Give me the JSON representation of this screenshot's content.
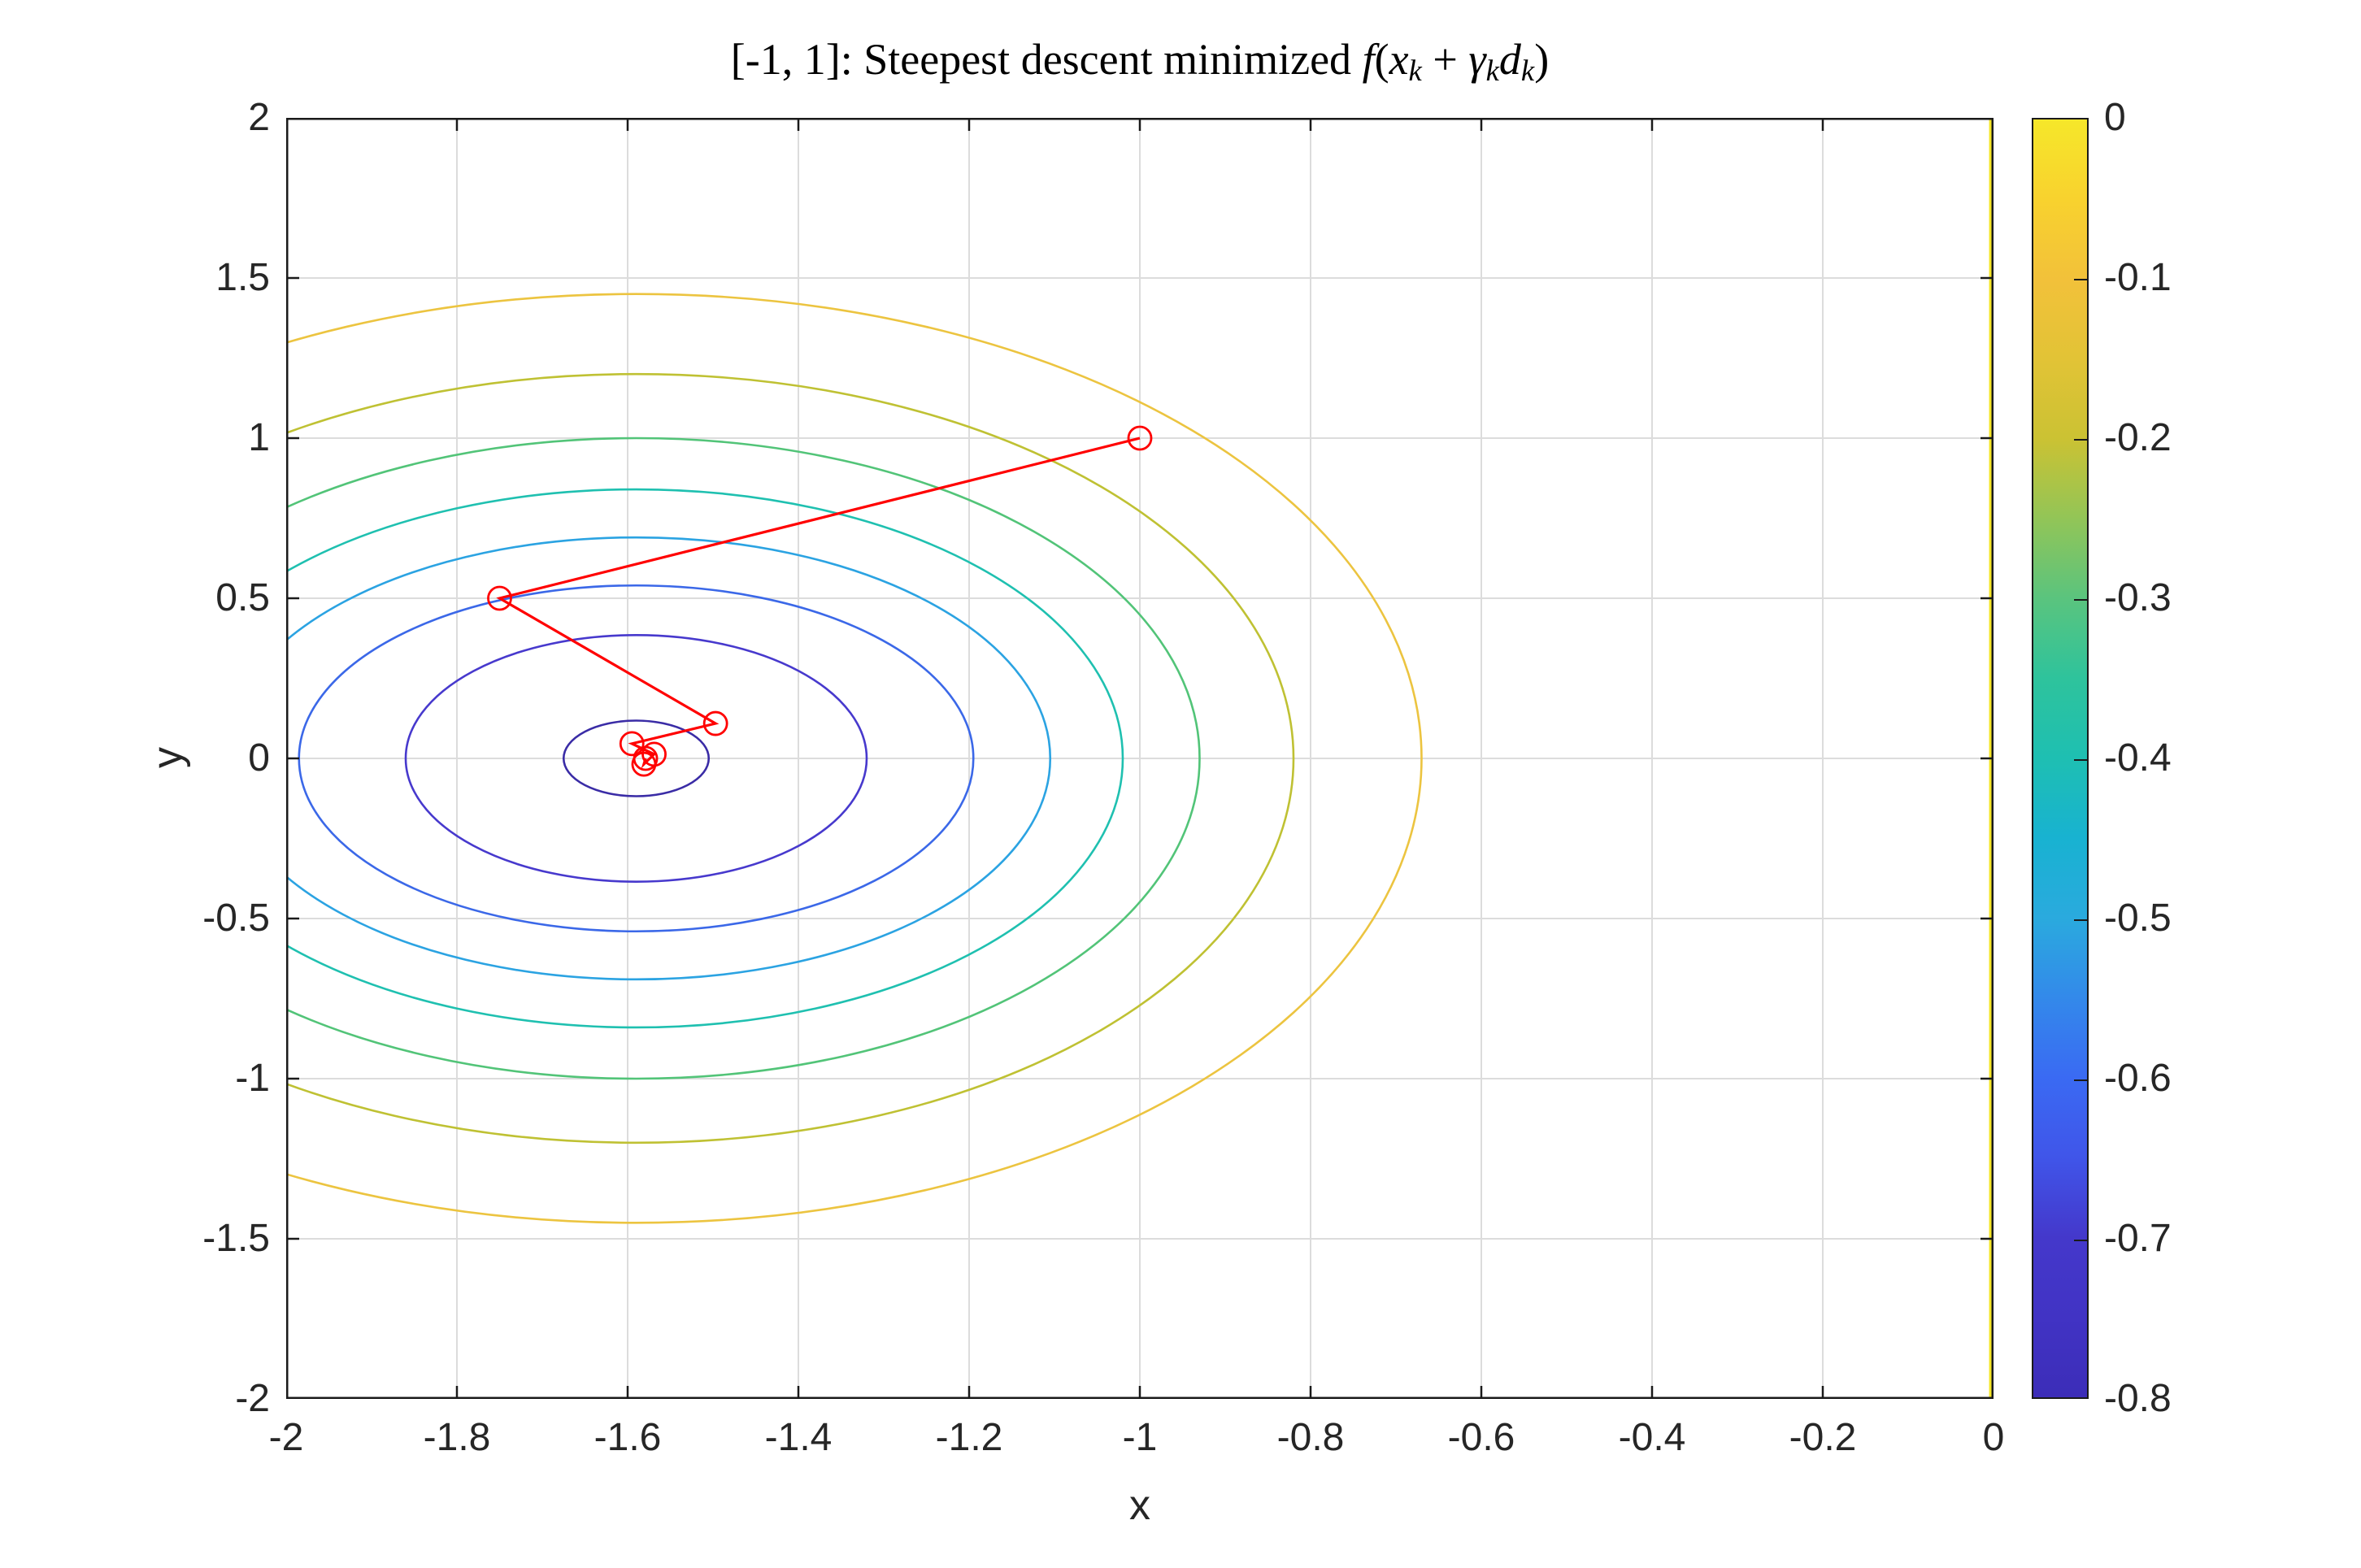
{
  "figure": {
    "background": "#ffffff",
    "title": {
      "prefix": "[-1, 1]: Steepest descent minimized ",
      "math": {
        "f": "f",
        "lparen": "(",
        "x": "x",
        "k1": "k",
        "plus": " + ",
        "gamma": "γ",
        "k2": "k",
        "d": "d",
        "k3": "k",
        "rparen": ")"
      }
    },
    "xlabel": "x",
    "ylabel": "y"
  },
  "style_colors": {
    "axis": "#1a1a1a",
    "grid": "#dcdcdc",
    "tick_text": "#262626",
    "path_red": "#ff0000"
  },
  "chart_data": {
    "type": "contour",
    "title": "[-1, 1]: Steepest descent minimized f(x_k + γ_k d_k)",
    "xlabel": "x",
    "ylabel": "y",
    "xlim": [
      -2,
      0
    ],
    "ylim": [
      -2,
      2
    ],
    "grid": true,
    "x_ticks": [
      -2,
      -1.8,
      -1.6,
      -1.4,
      -1.2,
      -1,
      -0.8,
      -0.6,
      -0.4,
      -0.2,
      0
    ],
    "x_tick_labels": [
      "-2",
      "-1.8",
      "-1.6",
      "-1.4",
      "-1.2",
      "-1",
      "-0.8",
      "-0.6",
      "-0.4",
      "-0.2",
      "0"
    ],
    "y_ticks": [
      -2,
      -1.5,
      -1,
      -0.5,
      0,
      0.5,
      1,
      1.5,
      2
    ],
    "y_tick_labels": [
      "-2",
      "-1.5",
      "-1",
      "-0.5",
      "0",
      "0.5",
      "1",
      "1.5",
      "2"
    ],
    "colormap": "parula",
    "colorbar": {
      "range": [
        -0.8,
        0
      ],
      "tick_values": [
        0,
        -0.1,
        -0.2,
        -0.3,
        -0.4,
        -0.5,
        -0.6,
        -0.7,
        -0.8
      ],
      "tick_labels": [
        "0",
        "-0.1",
        "-0.2",
        "-0.3",
        "-0.4",
        "-0.5",
        "-0.6",
        "-0.7",
        "-0.8"
      ],
      "gradient_stops": [
        {
          "v": 0,
          "c": "#f6e72a"
        },
        {
          "v": -0.05,
          "c": "#f8d22e"
        },
        {
          "v": -0.1,
          "c": "#f2c13a"
        },
        {
          "v": -0.15,
          "c": "#e2c336"
        },
        {
          "v": -0.2,
          "c": "#cbc233"
        },
        {
          "v": -0.25,
          "c": "#92c557"
        },
        {
          "v": -0.3,
          "c": "#5ac47e"
        },
        {
          "v": -0.35,
          "c": "#2ec39c"
        },
        {
          "v": -0.4,
          "c": "#1ebfb2"
        },
        {
          "v": -0.45,
          "c": "#18b2d1"
        },
        {
          "v": -0.5,
          "c": "#2aaade"
        },
        {
          "v": -0.55,
          "c": "#3389ea"
        },
        {
          "v": -0.6,
          "c": "#3a6af3"
        },
        {
          "v": -0.65,
          "c": "#4055e9"
        },
        {
          "v": -0.7,
          "c": "#4438cb"
        },
        {
          "v": -0.75,
          "c": "#4133c4"
        },
        {
          "v": -0.8,
          "c": "#3c2db8"
        }
      ]
    },
    "contours": {
      "center": [
        -1.59,
        0
      ],
      "rings": [
        {
          "level": -0.1,
          "color": "#ecc440",
          "rx": 0.92,
          "ry": 1.45
        },
        {
          "level": -0.2,
          "color": "#bfc133",
          "rx": 0.77,
          "ry": 1.2
        },
        {
          "level": -0.3,
          "color": "#52c478",
          "rx": 0.66,
          "ry": 1.0
        },
        {
          "level": -0.4,
          "color": "#1fc0b0",
          "rx": 0.57,
          "ry": 0.84
        },
        {
          "level": -0.5,
          "color": "#2ba3e2",
          "rx": 0.485,
          "ry": 0.69
        },
        {
          "level": -0.6,
          "color": "#3b68e8",
          "rx": 0.395,
          "ry": 0.54
        },
        {
          "level": -0.7,
          "color": "#4739cd",
          "rx": 0.27,
          "ry": 0.385
        },
        {
          "level": -0.78,
          "color": "#3a2ca6",
          "rx": 0.085,
          "ry": 0.118
        }
      ],
      "boundary_line": {
        "level": 0,
        "x": 0,
        "color": "#f6e72a"
      }
    },
    "descent_path": {
      "color": "#ff0000",
      "marker": "circle",
      "marker_radius_px": 14,
      "points": [
        [
          -1.0,
          1.0
        ],
        [
          -1.75,
          0.5
        ],
        [
          -1.497,
          0.109
        ],
        [
          -1.595,
          0.046
        ],
        [
          -1.569,
          0.013
        ],
        [
          -1.581,
          -0.018
        ],
        [
          -1.579,
          0.0
        ]
      ]
    }
  }
}
